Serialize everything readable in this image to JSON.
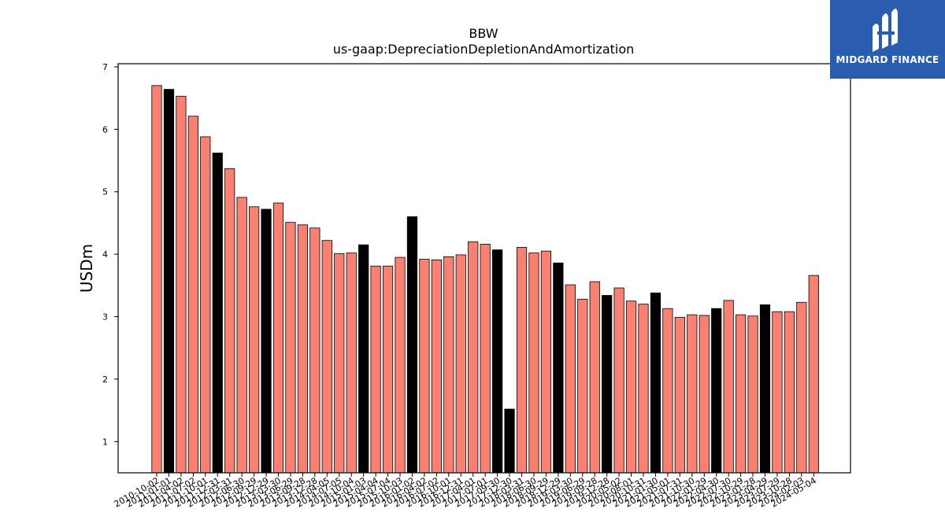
{
  "chart_data": {
    "type": "bar",
    "title": "BBW",
    "subtitle": "us-gaap:DepreciationDepletionAndAmortization",
    "ylabel": "USDm",
    "xlabel": "",
    "ylim": [
      0.5,
      7.05
    ],
    "yticks": [
      1,
      2,
      3,
      4,
      5,
      6,
      7
    ],
    "grid": false,
    "colors": {
      "quarter": "#fa8072",
      "year_end": "#000000",
      "edge": "#000000"
    },
    "categories": [
      "2010-10-02",
      "2011-01-01",
      "2011-04-02",
      "2011-07-02",
      "2011-10-01",
      "2011-12-31",
      "2012-03-31",
      "2012-06-30",
      "2012-09-29",
      "2012-12-29",
      "2013-03-30",
      "2013-06-29",
      "2013-09-28",
      "2013-12-28",
      "2014-04-05",
      "2014-07-05",
      "2014-10-04",
      "2015-01-03",
      "2015-04-04",
      "2015-07-04",
      "2015-10-03",
      "2016-01-02",
      "2016-04-02",
      "2016-07-02",
      "2016-10-01",
      "2016-12-31",
      "2017-04-01",
      "2017-07-01",
      "2017-09-30",
      "2017-12-30",
      "2018-03-31",
      "2018-06-30",
      "2018-09-29",
      "2018-12-29",
      "2019-03-30",
      "2019-06-29",
      "2019-09-28",
      "2019-12-28",
      "2020-05-02",
      "2020-08-01",
      "2020-10-31",
      "2021-01-30",
      "2021-05-01",
      "2021-07-31",
      "2021-10-30",
      "2022-01-29",
      "2022-04-30",
      "2022-07-30",
      "2022-10-29",
      "2023-01-28",
      "2023-04-29",
      "2023-07-29",
      "2023-10-28",
      "2024-02-03",
      "2024-05-04"
    ],
    "values": [
      6.7,
      6.64,
      6.53,
      6.21,
      5.88,
      5.62,
      5.37,
      4.91,
      4.76,
      4.72,
      4.82,
      4.51,
      4.47,
      4.42,
      4.22,
      4.01,
      4.02,
      4.15,
      3.81,
      3.81,
      3.95,
      4.6,
      3.92,
      3.91,
      3.96,
      3.99,
      4.2,
      4.16,
      4.07,
      1.52,
      4.11,
      4.02,
      4.05,
      3.86,
      3.51,
      3.28,
      3.56,
      3.34,
      3.46,
      3.25,
      3.2,
      3.38,
      3.13,
      2.99,
      3.03,
      3.02,
      3.13,
      3.26,
      3.03,
      3.01,
      3.19,
      3.08,
      3.08,
      3.23,
      3.66
    ],
    "year_end": [
      false,
      true,
      false,
      false,
      false,
      true,
      false,
      false,
      false,
      true,
      false,
      false,
      false,
      false,
      false,
      false,
      false,
      true,
      false,
      false,
      false,
      true,
      false,
      false,
      false,
      false,
      false,
      false,
      true,
      true,
      false,
      false,
      false,
      true,
      false,
      false,
      false,
      true,
      false,
      false,
      false,
      true,
      false,
      false,
      false,
      false,
      true,
      false,
      false,
      false,
      true,
      false,
      false,
      false,
      false
    ],
    "tick_labels": [
      "2010-10-02",
      "2011-01-01",
      "2011-04-02",
      "2011-07-02",
      "2011-10-01",
      "2011-12-31",
      "2012-03-31",
      "2012-06-30",
      "2012-09-29",
      "2012-12-29",
      "2013-03-30",
      "2013-06-29",
      "2013-09-28",
      "2013-12-28",
      "2014-04-05",
      "2014-07-05",
      "2014-10-04",
      "2015-01-03",
      "2015-04-04",
      "2015-07-04",
      "2015-10-03",
      "2016-01-02",
      "2016-04-02",
      "2016-07-02",
      "2016-10-01",
      "2016-12-31",
      "2017-04-01",
      "2017-07-01",
      "2017-09-30",
      "2017-12-30",
      "2018-03-31",
      "2018-06-30",
      "2018-09-29",
      "2018-12-29",
      "2019-03-30",
      "2019-06-29",
      "2019-09-28",
      "2019-12-28",
      "2020-05-02",
      "2020-08-01",
      "2020-10-31",
      "2021-01-30",
      "2021-05-01",
      "2021-07-31",
      "2021-10-30",
      "2022-01-29",
      "2022-04-30",
      "2022-07-30",
      "2022-10-29",
      "2023-01-28",
      "2023-04-29",
      "2023-07-29",
      "2023-10-28",
      "2024-02-03",
      "2024-05-04"
    ]
  },
  "logo": {
    "text": "MIDGARD FINANCE",
    "background": "#2a5db0"
  }
}
